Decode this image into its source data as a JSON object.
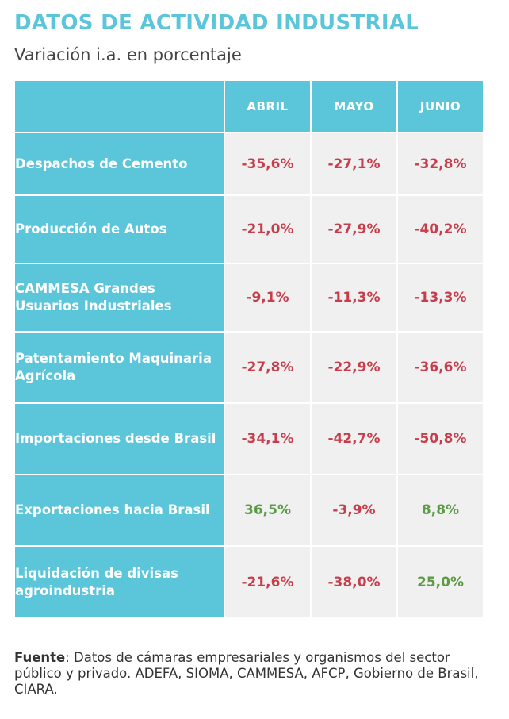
{
  "header": {
    "title": "DATOS DE ACTIVIDAD INDUSTRIAL",
    "subtitle": "Variación i.a. en porcentaje"
  },
  "table": {
    "columns": [
      "",
      "ABRIL",
      "MAYO",
      "JUNIO"
    ],
    "rows": [
      {
        "label": "Despachos de Cemento",
        "values": [
          "-35,6%",
          "-27,1%",
          "-32,8%"
        ]
      },
      {
        "label": "Producción de Autos",
        "values": [
          "-21,0%",
          "-27,9%",
          "-40,2%"
        ]
      },
      {
        "label": "CAMMESA Grandes Usuarios Industriales",
        "values": [
          "-9,1%",
          "-11,3%",
          "-13,3%"
        ]
      },
      {
        "label": "Patentamiento Maquinaria Agrícola",
        "values": [
          "-27,8%",
          "-22,9%",
          "-36,6%"
        ]
      },
      {
        "label": "Importaciones desde Brasil",
        "values": [
          "-34,1%",
          "-42,7%",
          "-50,8%"
        ]
      },
      {
        "label": "Exportaciones hacia Brasil",
        "values": [
          "36,5%",
          "-3,9%",
          "8,8%"
        ]
      },
      {
        "label": "Liquidación de divisas agroindustria",
        "values": [
          "-21,6%",
          "-38,0%",
          "25,0%"
        ]
      }
    ]
  },
  "footer": {
    "label": "Fuente",
    "text": ": Datos de cámaras empresariales y organismos del sector público y privado. ADEFA, SIOMA, CAMMESA, AFCP, Gobierno de Brasil, CIARA."
  },
  "colors": {
    "accent": "#5bc5d9",
    "negative": "#c63d4b",
    "positive": "#5c9b45",
    "cell_background": "#f0f0f0"
  }
}
